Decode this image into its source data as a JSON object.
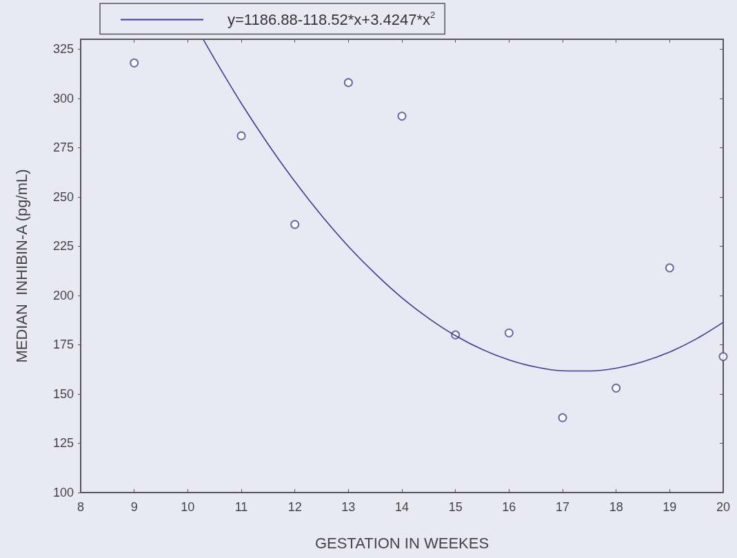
{
  "chart_data": {
    "type": "scatter",
    "xlabel": "GESTATION IN WEEKES",
    "ylabel": "MEDIAN  INHIBIN-A (pg/mL)",
    "xlim": [
      8,
      20
    ],
    "xticks": [
      8,
      9,
      10,
      11,
      12,
      13,
      14,
      15,
      16,
      17,
      18,
      19,
      20
    ],
    "ylim": [
      100,
      330
    ],
    "yticks": [
      100,
      125,
      150,
      175,
      200,
      225,
      250,
      275,
      300,
      325
    ],
    "grid": false,
    "legend": "top left",
    "series": [
      {
        "marker": "circle",
        "color": "#4a4a96",
        "x": [
          9,
          11,
          12,
          13,
          14,
          15,
          16,
          17,
          18,
          19,
          20
        ],
        "values": [
          318,
          281,
          236,
          308,
          291,
          180,
          181,
          138,
          153,
          214,
          169
        ]
      },
      {
        "type": "line",
        "marker": "none",
        "name": "y=1186.88-118.52*x+3.4247*x$^{2}$",
        "color": "#3c3c96",
        "x": [
          10.3,
          10.5,
          11,
          11.5,
          12,
          12.5,
          13,
          13.5,
          14,
          14.5,
          15,
          15.5,
          16,
          16.5,
          17,
          17.5,
          18,
          18.5,
          19,
          19.5,
          20
        ],
        "values": [
          329.4,
          320.0,
          297.5,
          276.8,
          257.8,
          240.5,
          224.9,
          211.1,
          198.8,
          188.4,
          179.6,
          172.6,
          167.3,
          163.7,
          161.8,
          161.7,
          163.1,
          166.4,
          171.3,
          178.0,
          186.4
        ]
      }
    ]
  }
}
